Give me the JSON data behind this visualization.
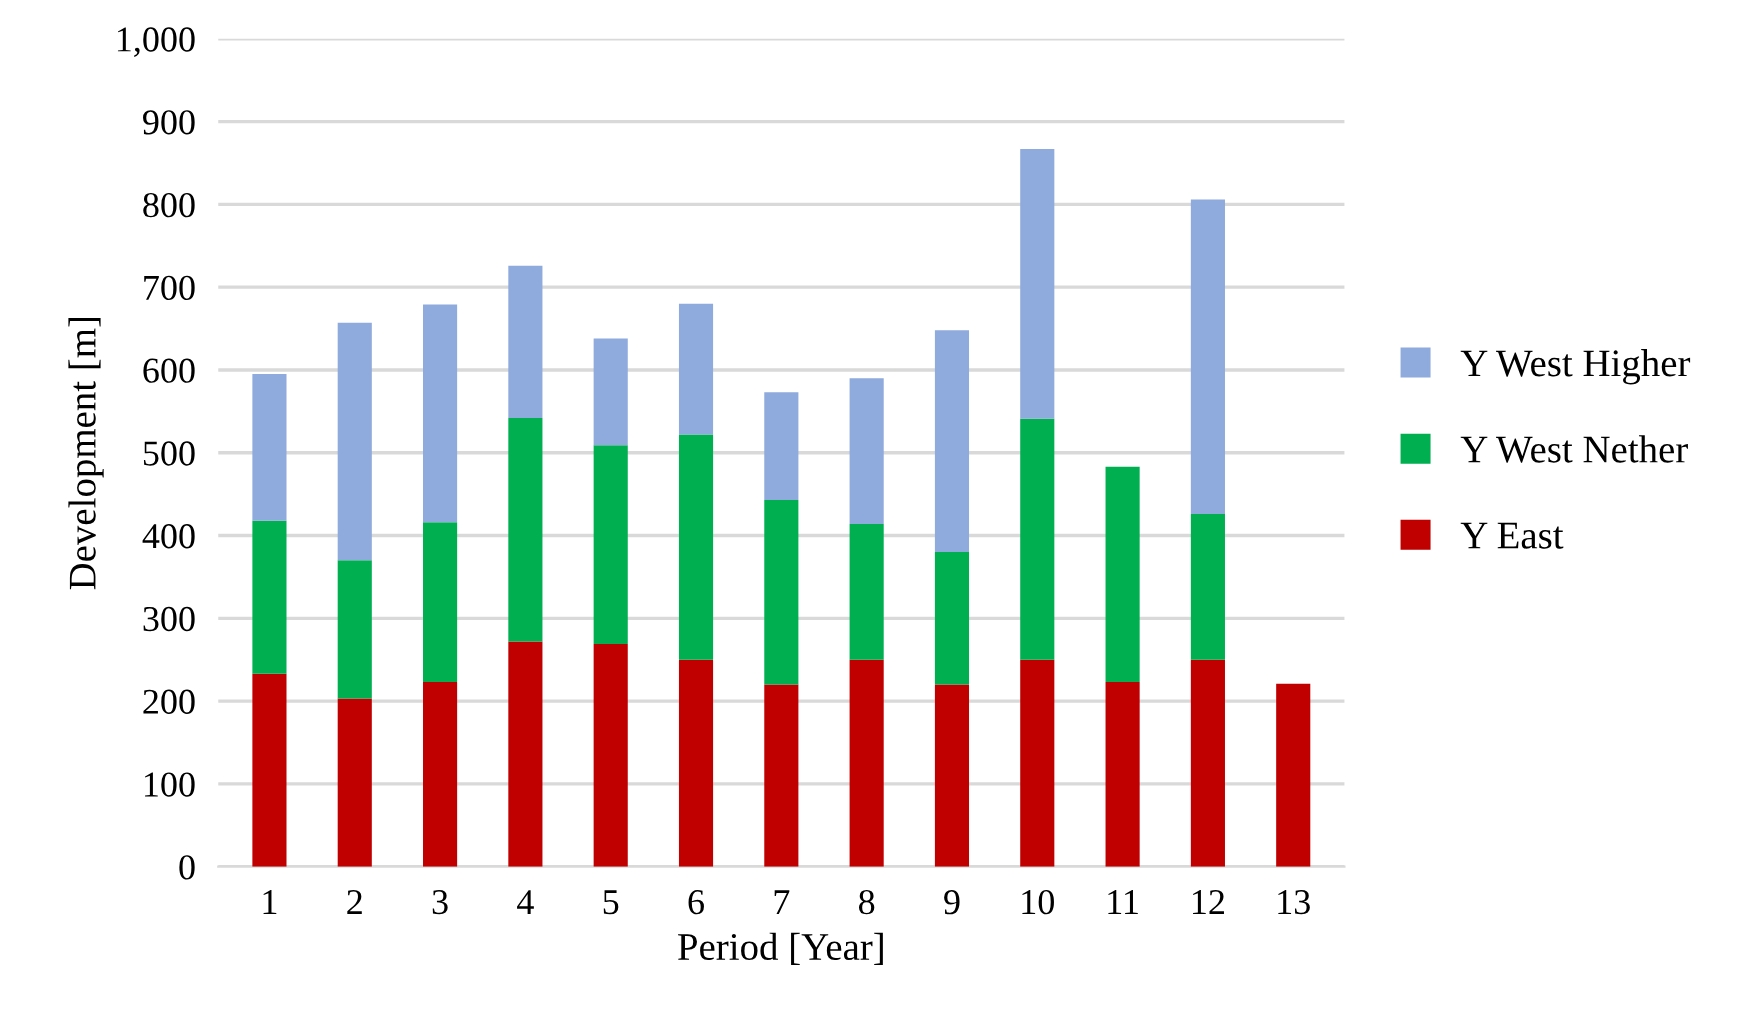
{
  "chart_data": {
    "type": "bar",
    "stacked": true,
    "xlabel": "Period [Year]",
    "ylabel": "Development [m]",
    "categories": [
      "1",
      "2",
      "3",
      "4",
      "5",
      "6",
      "7",
      "8",
      "9",
      "10",
      "11",
      "12",
      "13"
    ],
    "series": [
      {
        "name": "Y East",
        "color": "#c00000",
        "values": [
          233,
          203,
          223,
          272,
          269,
          250,
          220,
          250,
          220,
          250,
          223,
          250,
          221
        ]
      },
      {
        "name": "Y West Nether",
        "color": "#00b050",
        "values": [
          185,
          167,
          193,
          270,
          240,
          272,
          223,
          164,
          160,
          291,
          260,
          176,
          null
        ]
      },
      {
        "name": "Y West Higher",
        "color": "#8faadc",
        "values": [
          177,
          287,
          263,
          184,
          129,
          158,
          130,
          176,
          268,
          326,
          null,
          380,
          null
        ]
      }
    ],
    "ylim": [
      0,
      1000
    ],
    "yticks": [
      0,
      {
        "value": 100,
        "label": "100"
      },
      200,
      300,
      400,
      500,
      600,
      700,
      800,
      900,
      {
        "value": 1000,
        "label": "1,000"
      }
    ],
    "grid": "y",
    "legend": "right"
  }
}
